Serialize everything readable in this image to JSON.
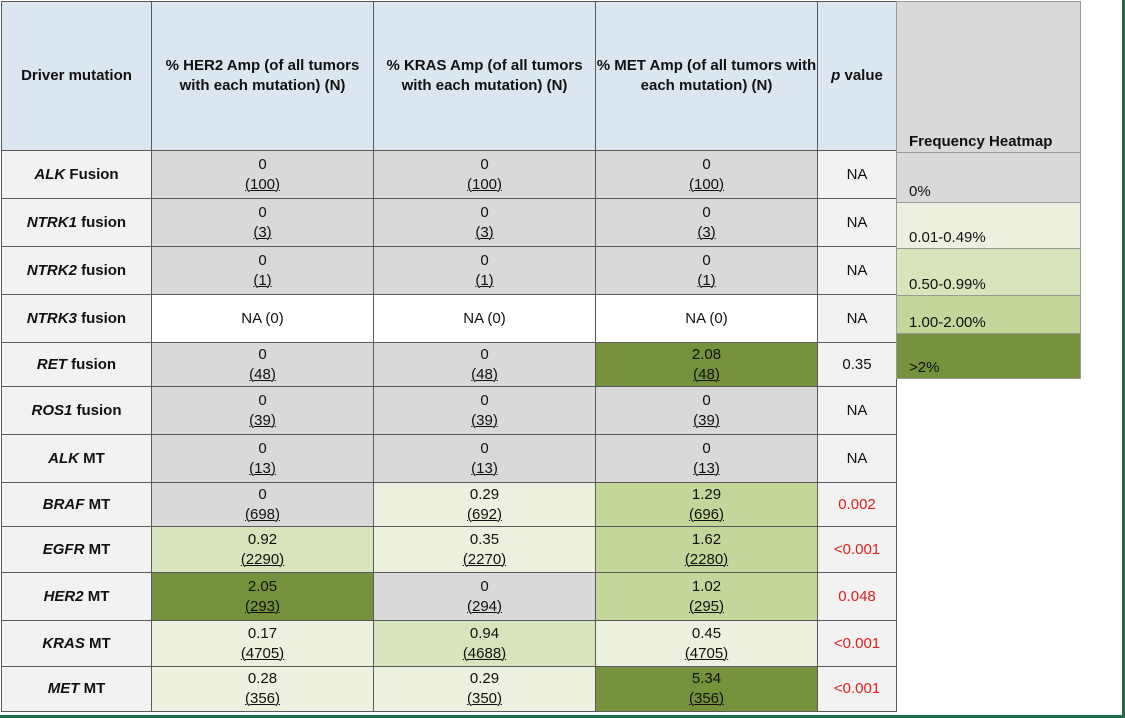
{
  "table": {
    "headers": {
      "driver": "Driver mutation",
      "her2": "% HER2 Amp (of all tumors with each mutation) (N)",
      "kras": "% KRAS Amp (of all tumors with each mutation) (N)",
      "met": "% MET Amp (of all tumors with each mutation) (N)",
      "pvalue_italic": "p",
      "pvalue_rest": " value"
    },
    "rows": [
      {
        "gene": "ALK",
        "suffix": " Fusion",
        "her2": {
          "v": "0",
          "n": "(100)",
          "heat": 0
        },
        "kras": {
          "v": "0",
          "n": "(100)",
          "heat": 0
        },
        "met": {
          "v": "0",
          "n": "(100)",
          "heat": 0
        },
        "p": "NA",
        "sig": false
      },
      {
        "gene": "NTRK1",
        "suffix": " fusion",
        "her2": {
          "v": "0",
          "n": "(3)",
          "heat": 0
        },
        "kras": {
          "v": "0",
          "n": "(3)",
          "heat": 0
        },
        "met": {
          "v": "0",
          "n": "(3)",
          "heat": 0
        },
        "p": "NA",
        "sig": false
      },
      {
        "gene": "NTRK2",
        "suffix": " fusion",
        "her2": {
          "v": "0",
          "n": "(1)",
          "heat": 0
        },
        "kras": {
          "v": "0",
          "n": "(1)",
          "heat": 0
        },
        "met": {
          "v": "0",
          "n": "(1)",
          "heat": 0
        },
        "p": "NA",
        "sig": false
      },
      {
        "gene": "NTRK3",
        "suffix": " fusion",
        "her2": {
          "v": "NA (0)",
          "n": "",
          "heat": -1
        },
        "kras": {
          "v": "NA (0)",
          "n": "",
          "heat": -1
        },
        "met": {
          "v": "NA (0)",
          "n": "",
          "heat": -1
        },
        "p": "NA",
        "sig": false
      },
      {
        "gene": "RET",
        "suffix": " fusion",
        "her2": {
          "v": "0",
          "n": "(48)",
          "heat": 0
        },
        "kras": {
          "v": "0",
          "n": "(48)",
          "heat": 0
        },
        "met": {
          "v": "2.08",
          "n": "(48)",
          "heat": 4
        },
        "p": "0.35",
        "sig": false
      },
      {
        "gene": "ROS1",
        "suffix": " fusion",
        "her2": {
          "v": "0",
          "n": "(39)",
          "heat": 0
        },
        "kras": {
          "v": "0",
          "n": "(39)",
          "heat": 0
        },
        "met": {
          "v": "0",
          "n": "(39)",
          "heat": 0
        },
        "p": "NA",
        "sig": false
      },
      {
        "gene": "ALK",
        "suffix": " MT",
        "her2": {
          "v": "0",
          "n": "(13)",
          "heat": 0
        },
        "kras": {
          "v": "0",
          "n": "(13)",
          "heat": 0
        },
        "met": {
          "v": "0",
          "n": "(13)",
          "heat": 0
        },
        "p": "NA",
        "sig": false
      },
      {
        "gene": "BRAF",
        "suffix": " MT",
        "her2": {
          "v": "0",
          "n": "(698)",
          "heat": 0
        },
        "kras": {
          "v": "0.29",
          "n": "(692)",
          "heat": 1
        },
        "met": {
          "v": "1.29",
          "n": "(696)",
          "heat": 3
        },
        "p": "0.002",
        "sig": true
      },
      {
        "gene": "EGFR",
        "suffix": " MT",
        "her2": {
          "v": "0.92",
          "n": "(2290)",
          "heat": 2
        },
        "kras": {
          "v": "0.35",
          "n": "(2270)",
          "heat": 1
        },
        "met": {
          "v": "1.62",
          "n": "(2280)",
          "heat": 3
        },
        "p": "<0.001",
        "sig": true
      },
      {
        "gene": "HER2",
        "suffix": " MT",
        "her2": {
          "v": "2.05",
          "n": "(293)",
          "heat": 4
        },
        "kras": {
          "v": "0",
          "n": "(294)",
          "heat": 0
        },
        "met": {
          "v": "1.02",
          "n": "(295)",
          "heat": 3
        },
        "p": "0.048",
        "sig": true
      },
      {
        "gene": "KRAS",
        "suffix": " MT",
        "her2": {
          "v": "0.17",
          "n": "(4705)",
          "heat": 1
        },
        "kras": {
          "v": "0.94",
          "n": "(4688)",
          "heat": 2
        },
        "met": {
          "v": "0.45",
          "n": "(4705)",
          "heat": 1
        },
        "p": "<0.001",
        "sig": true
      },
      {
        "gene": "MET",
        "suffix": " MT",
        "her2": {
          "v": "0.28",
          "n": "(356)",
          "heat": 1
        },
        "kras": {
          "v": "0.29",
          "n": "(350)",
          "heat": 1
        },
        "met": {
          "v": "5.34",
          "n": "(356)",
          "heat": 4
        },
        "p": "<0.001",
        "sig": true
      }
    ]
  },
  "legend": {
    "title": "Frequency Heatmap",
    "items": [
      {
        "label": "0%",
        "color": "#d9d9d9"
      },
      {
        "label": "0.01-0.49%",
        "color": "#ebf1de"
      },
      {
        "label": "0.50-0.99%",
        "color": "#d8e4bc"
      },
      {
        "label": "1.00-2.00%",
        "color": "#c4d79b"
      },
      {
        "label": ">2%",
        "color": "#76923c"
      }
    ]
  },
  "colors": {
    "header_bg": "#dce6f1",
    "label_bg": "#f2f2f2",
    "significant_text": "#e02020",
    "frame": "#1f6b4b"
  }
}
